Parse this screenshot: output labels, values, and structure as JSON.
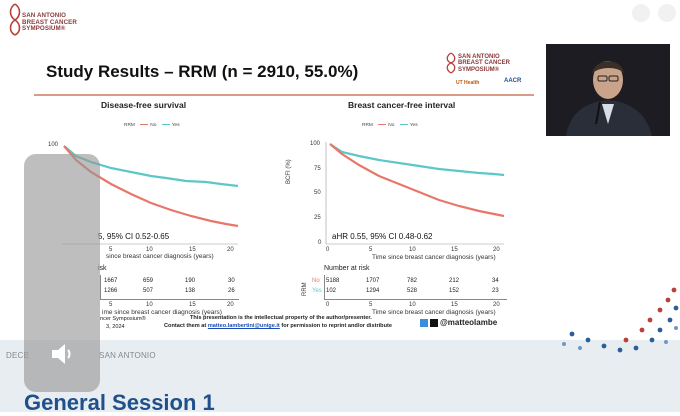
{
  "header": {
    "org_logo_text": [
      "SAN ANTONIO",
      "BREAST CANCER",
      "SYMPOSIUM®"
    ]
  },
  "slide": {
    "title": "Study Results – RRM (n = 2910, 55.0%)",
    "logos": {
      "sabcs": [
        "SAN ANTONIO",
        "BREAST CANCER",
        "SYMPOSIUM®"
      ],
      "ut": "UT Health",
      "aacr": "AACR"
    },
    "colors": {
      "no": "#e8776a",
      "yes": "#5cc7c9",
      "rule": "#d89b86"
    },
    "left_chart": {
      "title": "Disease-free survival",
      "legend": {
        "label": "RRM",
        "no": "No",
        "yes": "Yes"
      },
      "y_ticks": [
        "100"
      ],
      "x_ticks": [
        "5",
        "10",
        "15",
        "20"
      ],
      "hr_text": "5, 95% CI 0.52-0.65",
      "xlabel": "since breast cancer diagnosis (years)",
      "risk_label": "isk",
      "risk_rows": [
        [
          "1667",
          "659",
          "190",
          "30"
        ],
        [
          "1266",
          "507",
          "138",
          "26"
        ]
      ],
      "risk_ticks": [
        "5",
        "10",
        "15",
        "20"
      ],
      "risk_xlabel": "ime since breast cancer diagnosis (years)"
    },
    "right_chart": {
      "title": "Breast cancer-free interval",
      "legend": {
        "label": "RRM",
        "no": "No",
        "yes": "Yes"
      },
      "ylabel": "BCFI (%)",
      "y_ticks": [
        "100",
        "75",
        "50",
        "25",
        "0"
      ],
      "x_ticks": [
        "0",
        "5",
        "10",
        "15",
        "20"
      ],
      "hr_text": "aHR 0.55, 95% CI 0.48-0.62",
      "xlabel": "Time since breast cancer diagnosis (years)",
      "risk_title": "Number at risk",
      "risk_axis": "RRM",
      "risk_rows": [
        {
          "name": "No",
          "values": [
            "5188",
            "1707",
            "782",
            "212",
            "34"
          ]
        },
        {
          "name": "Yes",
          "values": [
            "102",
            "1294",
            "528",
            "152",
            "23"
          ]
        }
      ],
      "risk_ticks": [
        "0",
        "5",
        "10",
        "15",
        "20"
      ],
      "risk_xlabel": "Time since breast cancer diagnosis (years)"
    },
    "footer": {
      "left1": "ncer Symposium®",
      "left2": "3, 2024",
      "line1": "This presentation is the intellectual property of the author/presenter.",
      "line2_pre": "Contact them at ",
      "email": "matteo.lambertini@unige.it",
      "line2_post": " for permission to reprint and/or distribute"
    },
    "handle": "@matteolambe"
  },
  "banner": {
    "date": "DECE",
    "city": "SAN ANTONIO",
    "title": "General Session 1"
  },
  "overlay": {
    "icon": "volume-icon"
  }
}
